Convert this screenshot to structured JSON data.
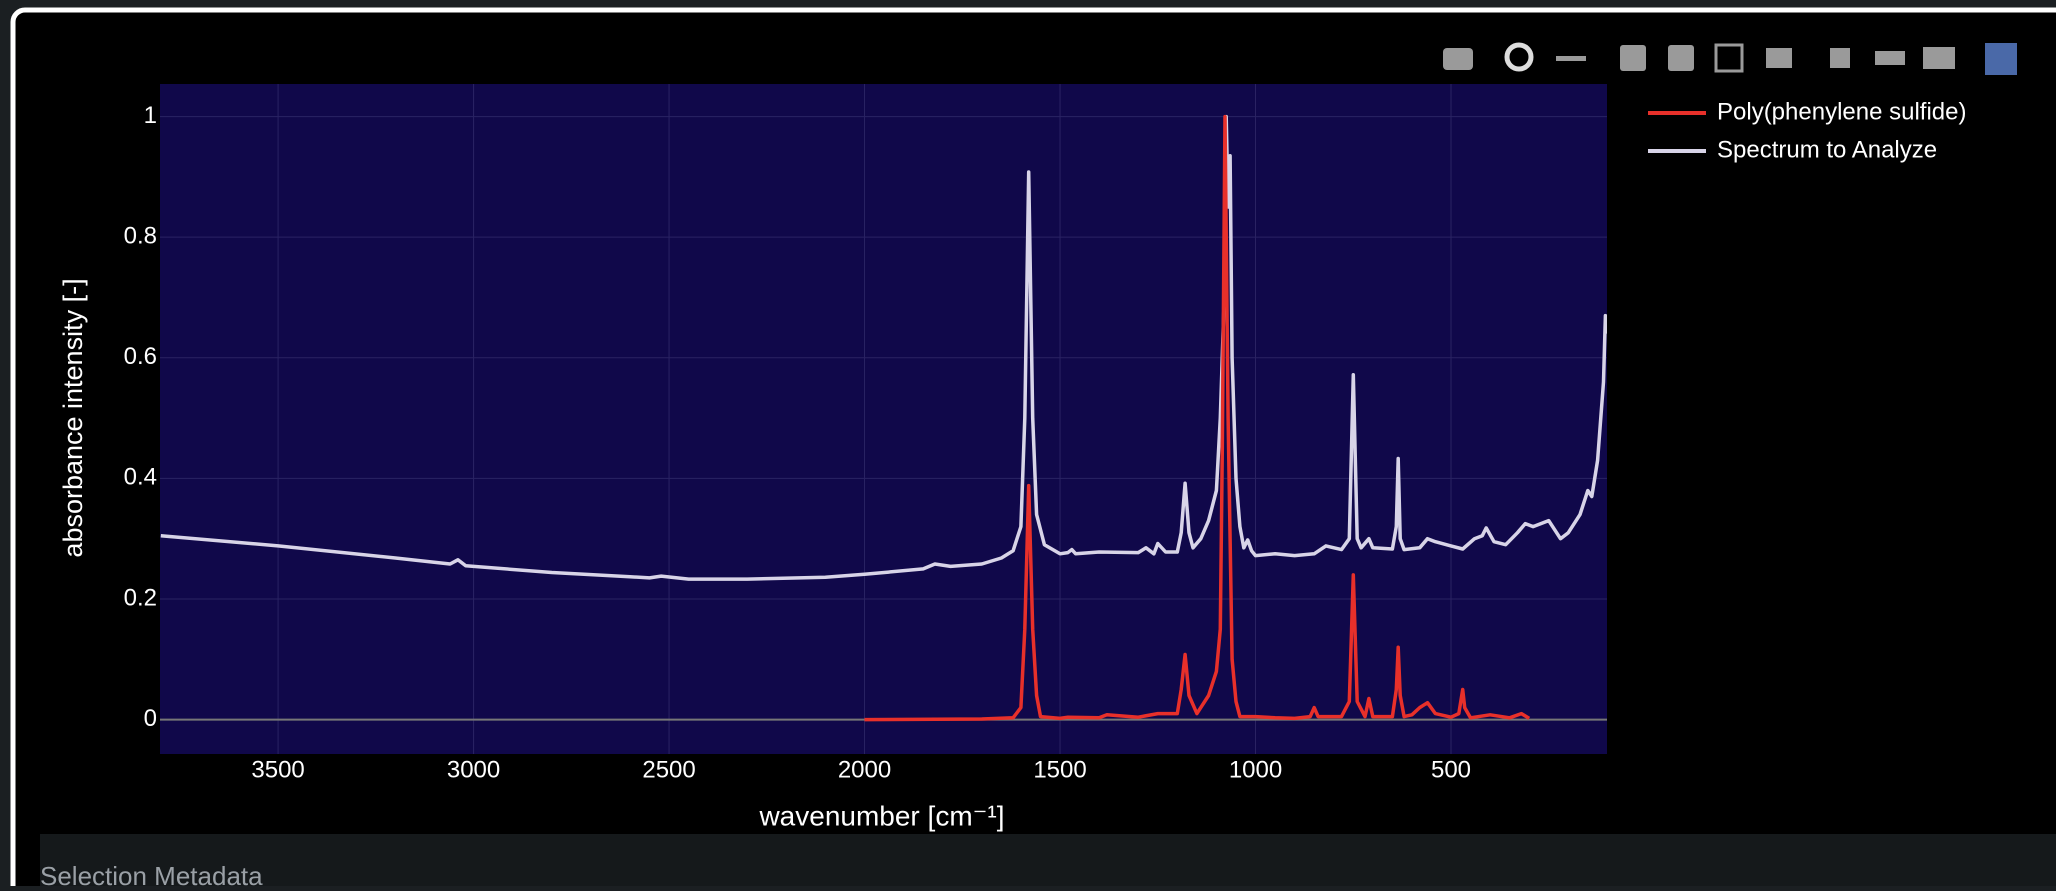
{
  "chart_data": {
    "type": "line",
    "xlabel": "wavenumber [cm⁻¹]",
    "ylabel": "absorbance intensity [-]",
    "xlim": [
      3802,
      101
    ],
    "ylim": [
      -0.057,
      1.054
    ],
    "xticks": [
      3500,
      3000,
      2500,
      2000,
      1500,
      1000,
      500
    ],
    "yticks": [
      0,
      0.2,
      0.4,
      0.6,
      0.8,
      1
    ],
    "grid": true,
    "legend": "outside-top-right",
    "series": [
      {
        "name": "Poly(phenylene sulfide)",
        "color": "#e8302a",
        "x": [
          2000,
          1700,
          1620,
          1600,
          1590,
          1580,
          1570,
          1560,
          1550,
          1500,
          1480,
          1400,
          1380,
          1300,
          1250,
          1200,
          1190,
          1180,
          1170,
          1150,
          1120,
          1100,
          1090,
          1085,
          1078,
          1070,
          1060,
          1050,
          1040,
          1000,
          950,
          900,
          860,
          850,
          840,
          780,
          760,
          750,
          740,
          720,
          710,
          700,
          650,
          640,
          635,
          630,
          620,
          600,
          580,
          560,
          540,
          500,
          480,
          470,
          465,
          450,
          400,
          350,
          320,
          300
        ],
        "values": [
          0,
          0.001,
          0.003,
          0.02,
          0.15,
          0.388,
          0.15,
          0.04,
          0.005,
          0.002,
          0.004,
          0.003,
          0.008,
          0.004,
          0.01,
          0.01,
          0.05,
          0.108,
          0.04,
          0.01,
          0.04,
          0.08,
          0.15,
          0.45,
          1.0,
          0.5,
          0.1,
          0.03,
          0.005,
          0.005,
          0.003,
          0.002,
          0.005,
          0.02,
          0.005,
          0.005,
          0.03,
          0.24,
          0.03,
          0.005,
          0.035,
          0.005,
          0.005,
          0.05,
          0.12,
          0.04,
          0.005,
          0.008,
          0.02,
          0.028,
          0.01,
          0.004,
          0.01,
          0.05,
          0.02,
          0.003,
          0.008,
          0.003,
          0.01,
          0.002
        ]
      },
      {
        "name": "Spectrum to Analyze",
        "color": "#d8d4e8",
        "x": [
          3800,
          3500,
          3200,
          3060,
          3040,
          3020,
          2800,
          2600,
          2550,
          2520,
          2450,
          2300,
          2100,
          2000,
          1850,
          1820,
          1780,
          1700,
          1650,
          1620,
          1600,
          1590,
          1580,
          1570,
          1560,
          1540,
          1500,
          1480,
          1470,
          1460,
          1400,
          1300,
          1280,
          1260,
          1250,
          1230,
          1200,
          1190,
          1180,
          1170,
          1160,
          1140,
          1120,
          1100,
          1090,
          1080,
          1075,
          1070,
          1065,
          1060,
          1050,
          1040,
          1030,
          1020,
          1010,
          1000,
          950,
          900,
          850,
          820,
          780,
          760,
          750,
          740,
          730,
          710,
          700,
          650,
          640,
          635,
          630,
          620,
          580,
          560,
          540,
          500,
          470,
          440,
          420,
          410,
          390,
          360,
          330,
          310,
          290,
          250,
          220,
          200,
          170,
          150,
          140,
          125,
          110,
          105,
          101
        ],
        "values": [
          0.305,
          0.288,
          0.268,
          0.258,
          0.265,
          0.255,
          0.244,
          0.237,
          0.235,
          0.238,
          0.233,
          0.233,
          0.236,
          0.241,
          0.25,
          0.258,
          0.254,
          0.258,
          0.268,
          0.28,
          0.32,
          0.5,
          0.908,
          0.5,
          0.34,
          0.29,
          0.275,
          0.277,
          0.282,
          0.275,
          0.278,
          0.277,
          0.285,
          0.275,
          0.292,
          0.278,
          0.278,
          0.31,
          0.392,
          0.31,
          0.285,
          0.3,
          0.33,
          0.38,
          0.5,
          0.7,
          1.0,
          0.85,
          0.935,
          0.6,
          0.4,
          0.32,
          0.285,
          0.298,
          0.28,
          0.272,
          0.275,
          0.272,
          0.275,
          0.288,
          0.282,
          0.3,
          0.572,
          0.3,
          0.285,
          0.3,
          0.285,
          0.283,
          0.32,
          0.433,
          0.3,
          0.282,
          0.285,
          0.3,
          0.295,
          0.288,
          0.283,
          0.3,
          0.305,
          0.318,
          0.295,
          0.29,
          0.31,
          0.325,
          0.32,
          0.33,
          0.3,
          0.31,
          0.34,
          0.38,
          0.37,
          0.43,
          0.56,
          0.67,
          0.64
        ]
      }
    ]
  },
  "footer_text": "Selection Metadata"
}
